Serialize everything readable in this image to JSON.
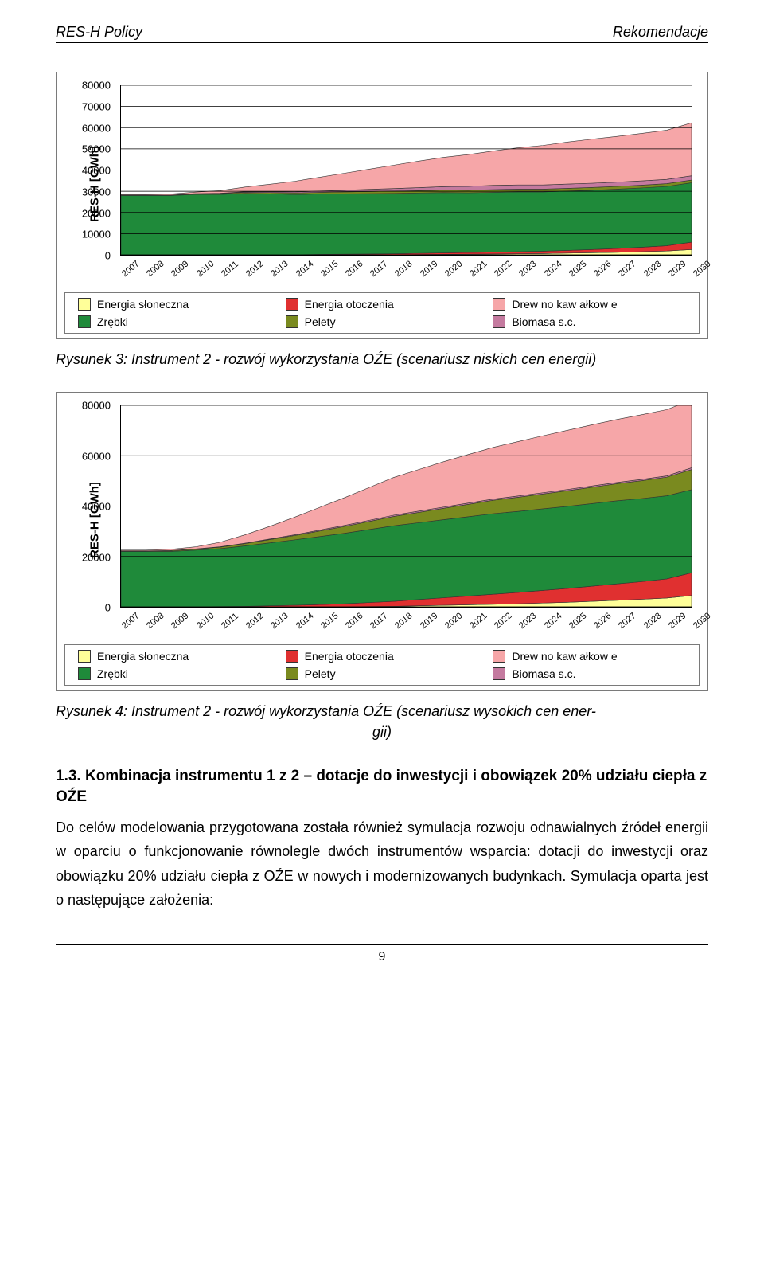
{
  "header": {
    "left": "RES-H Policy",
    "right": "Rekomendacje"
  },
  "colors": {
    "solar": "#ffff99",
    "ambient": "#e03030",
    "logwood": "#f6a6a8",
    "chips": "#1f8a3a",
    "pellets": "#7a8a1f",
    "biomass": "#c47a9f",
    "grid": "#000000",
    "border": "#7a7a7a"
  },
  "legend_labels": {
    "solar": "Energia słoneczna",
    "ambient": "Energia otoczenia",
    "logwood": "Drew no kaw ałkow e",
    "chips": "Zrębki",
    "pellets": "Pelety",
    "biomass": "Biomasa s.c."
  },
  "years": [
    "2007",
    "2008",
    "2009",
    "2010",
    "2011",
    "2012",
    "2013",
    "2014",
    "2015",
    "2016",
    "2017",
    "2018",
    "2019",
    "2020",
    "2021",
    "2022",
    "2023",
    "2024",
    "2025",
    "2026",
    "2027",
    "2028",
    "2029",
    "2030"
  ],
  "chart1": {
    "y_label": "RES-H [GWh]",
    "y_max": 80000,
    "y_ticks": [
      0,
      10000,
      20000,
      30000,
      40000,
      50000,
      60000,
      70000,
      80000
    ],
    "stacks": {
      "solar": [
        0,
        0,
        0,
        0,
        0,
        0,
        0,
        0,
        0,
        0,
        0,
        0,
        100,
        200,
        300,
        400,
        500,
        600,
        800,
        1000,
        1200,
        1500,
        1800,
        2500
      ],
      "ambient": [
        0,
        0,
        0,
        0,
        0,
        0,
        0,
        0,
        200,
        300,
        400,
        500,
        600,
        700,
        800,
        900,
        1000,
        1100,
        1300,
        1500,
        1800,
        2100,
        2500,
        3500
      ],
      "chips": [
        28000,
        28000,
        28000,
        28500,
        28500,
        29000,
        28800,
        28500,
        28500,
        28500,
        28500,
        28500,
        28500,
        28500,
        28200,
        28200,
        28200,
        28000,
        28000,
        28000,
        28000,
        28000,
        28000,
        28000
      ],
      "pellets": [
        200,
        200,
        200,
        300,
        400,
        500,
        600,
        700,
        800,
        900,
        1000,
        1100,
        1100,
        1200,
        1200,
        1300,
        1300,
        1300,
        1300,
        1300,
        1300,
        1300,
        1300,
        1300
      ],
      "biomass": [
        0,
        0,
        0,
        100,
        200,
        300,
        400,
        500,
        600,
        800,
        1000,
        1200,
        1400,
        1600,
        1800,
        2000,
        2000,
        2000,
        2000,
        2000,
        2000,
        2000,
        2000,
        2000
      ],
      "logwood": [
        300,
        300,
        500,
        700,
        1200,
        2200,
        3500,
        5000,
        6500,
        8000,
        9500,
        11000,
        12500,
        13800,
        15000,
        16200,
        17500,
        18600,
        19800,
        20800,
        21600,
        22400,
        23200,
        25000
      ]
    },
    "caption": "Rysunek 3: Instrument 2 - rozwój wykorzystania OŹE (scenariusz niskich cen energii)"
  },
  "chart2": {
    "y_label": "RES-H [GWh]",
    "y_max": 80000,
    "y_ticks": [
      0,
      20000,
      40000,
      60000,
      80000
    ],
    "stacks": {
      "solar": [
        0,
        0,
        0,
        0,
        0,
        0,
        0,
        0,
        0,
        0,
        100,
        200,
        400,
        600,
        800,
        1000,
        1200,
        1500,
        1800,
        2200,
        2600,
        3000,
        3500,
        4500
      ],
      "ambient": [
        0,
        0,
        0,
        0,
        100,
        200,
        400,
        600,
        900,
        1200,
        1600,
        2000,
        2500,
        3000,
        3500,
        4000,
        4500,
        5000,
        5500,
        6000,
        6500,
        7000,
        7600,
        9000
      ],
      "chips": [
        22000,
        22000,
        22000,
        22500,
        23000,
        24000,
        25000,
        26000,
        27000,
        28000,
        29000,
        30000,
        30500,
        31000,
        31500,
        32000,
        32200,
        32400,
        32600,
        32800,
        33000,
        33000,
        33000,
        33000
      ],
      "pellets": [
        200,
        200,
        300,
        400,
        600,
        900,
        1300,
        1700,
        2200,
        2700,
        3200,
        3700,
        4100,
        4500,
        4900,
        5300,
        5600,
        5900,
        6200,
        6500,
        6800,
        7100,
        7400,
        8000
      ],
      "biomass": [
        0,
        0,
        50,
        100,
        150,
        200,
        250,
        300,
        350,
        400,
        450,
        500,
        500,
        500,
        500,
        500,
        500,
        500,
        500,
        500,
        500,
        500,
        500,
        700
      ],
      "logwood": [
        300,
        300,
        500,
        800,
        1800,
        3300,
        5000,
        7000,
        9000,
        11000,
        13000,
        15000,
        16500,
        18000,
        19300,
        20500,
        21600,
        22600,
        23500,
        24300,
        25000,
        25700,
        26300,
        27000
      ]
    },
    "caption_line1": "Rysunek 4: Instrument 2 - rozwój wykorzystania OŹE (scenariusz wysokich cen ener-",
    "caption_line2": "gii)"
  },
  "section": {
    "title": "1.3. Kombinacja instrumentu 1 z 2 – dotacje do inwestycji i obowiązek 20% udziału ciepła z OŹE",
    "body": "Do celów modelowania przygotowana została również symulacja rozwoju odnawialnych źródeł energii w oparciu o funkcjonowanie równolegle dwóch instrumentów wsparcia: dotacji do inwestycji oraz obowiązku 20% udziału ciepła z OŹE w nowych i modernizowanych budynkach. Symulacja oparta jest o następujące założenia:"
  },
  "page_number": "9"
}
